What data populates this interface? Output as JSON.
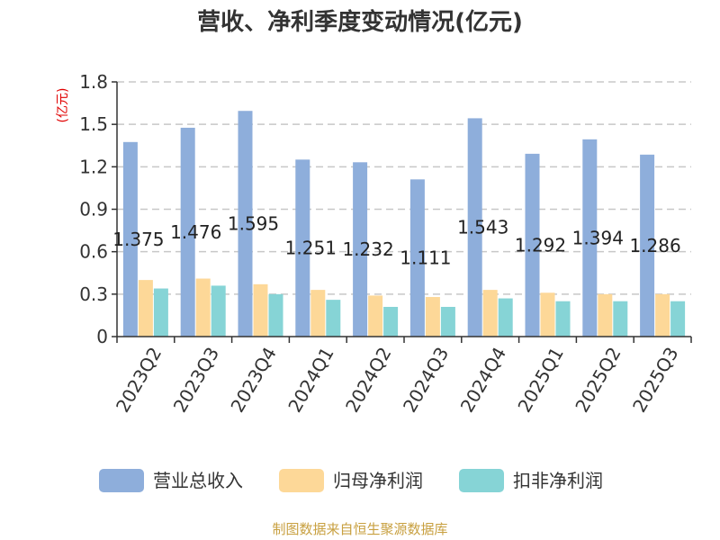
{
  "chart_data": {
    "type": "bar",
    "title": "营收、净利季度变动情况(亿元)",
    "unit": "(亿元)",
    "categories": [
      "2023Q2",
      "2023Q3",
      "2023Q4",
      "2024Q1",
      "2024Q2",
      "2024Q3",
      "2024Q4",
      "2025Q1",
      "2025Q2",
      "2025Q3"
    ],
    "series": [
      {
        "name": "营业总收入",
        "color": "#8eaedb",
        "values": [
          1.375,
          1.476,
          1.595,
          1.251,
          1.232,
          1.111,
          1.543,
          1.292,
          1.394,
          1.286
        ],
        "data_labels": [
          "1.375",
          "1.476",
          "1.595",
          "1.251",
          "1.232",
          "1.111",
          "1.543",
          "1.292",
          "1.394",
          "1.286"
        ]
      },
      {
        "name": "归母净利润",
        "color": "#fdd898",
        "values": [
          0.4,
          0.41,
          0.37,
          0.33,
          0.29,
          0.28,
          0.33,
          0.31,
          0.3,
          0.3
        ]
      },
      {
        "name": "扣非净利润",
        "color": "#86d4d6",
        "values": [
          0.34,
          0.36,
          0.3,
          0.26,
          0.21,
          0.21,
          0.27,
          0.25,
          0.25,
          0.25
        ]
      }
    ],
    "yticks": [
      "0",
      "0.3",
      "0.6",
      "0.9",
      "1.2",
      "1.5",
      "1.8"
    ],
    "ylim": [
      0,
      1.8
    ],
    "grid": true,
    "legend_position": "bottom"
  },
  "source": "制图数据来自恒生聚源数据库"
}
